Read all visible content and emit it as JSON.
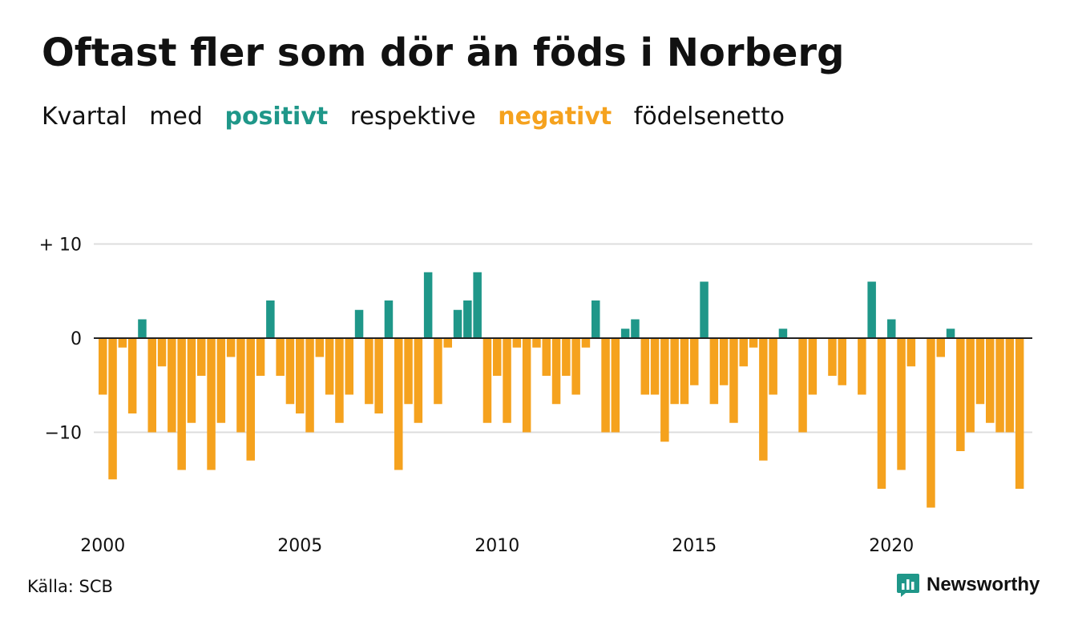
{
  "title": "Oftast fler som dör än föds i Norberg",
  "subtitle": {
    "w1": "Kvartal",
    "w2": "med",
    "positive": "positivt",
    "w3": "respektive",
    "negative": "negativt",
    "w4": "födelsenetto"
  },
  "colors": {
    "positive": "#1f9789",
    "negative": "#f5a21e",
    "grid": "#dddddd",
    "text": "#111111"
  },
  "source": "Källa: SCB",
  "brand": {
    "name": "Newsworthy",
    "icon": "newsworthy-logo-icon"
  },
  "chart_data": {
    "type": "bar",
    "x_start": "2000 Q1",
    "x_tick_labels": [
      "2000",
      "2005",
      "2010",
      "2015",
      "2020"
    ],
    "y_tick_labels": [
      "+ 10",
      "0",
      "−10"
    ],
    "y_ticks": [
      10,
      0,
      -10
    ],
    "ylim": [
      -19,
      11
    ],
    "grid": true,
    "values": [
      -6,
      -15,
      -1,
      -8,
      2,
      -10,
      -3,
      -10,
      -14,
      -9,
      -4,
      -14,
      -9,
      -2,
      -10,
      -13,
      -4,
      4,
      -4,
      -7,
      -8,
      -10,
      -2,
      -6,
      -9,
      -6,
      3,
      -7,
      -8,
      4,
      -14,
      -7,
      -9,
      7,
      -7,
      -1,
      3,
      4,
      7,
      -9,
      -4,
      -9,
      -1,
      -10,
      -1,
      -4,
      -7,
      -4,
      -6,
      -1,
      4,
      -10,
      -10,
      1,
      2,
      -6,
      -6,
      -11,
      -7,
      -7,
      -5,
      6,
      -7,
      -5,
      -9,
      -3,
      -1,
      -13,
      -6,
      1,
      0,
      -10,
      -6,
      0,
      -4,
      -5,
      0,
      -6,
      6,
      -16,
      2,
      -14,
      -3,
      0,
      -18,
      -2,
      1,
      -12,
      -10,
      -7,
      -9,
      -10,
      -10,
      -16
    ]
  }
}
